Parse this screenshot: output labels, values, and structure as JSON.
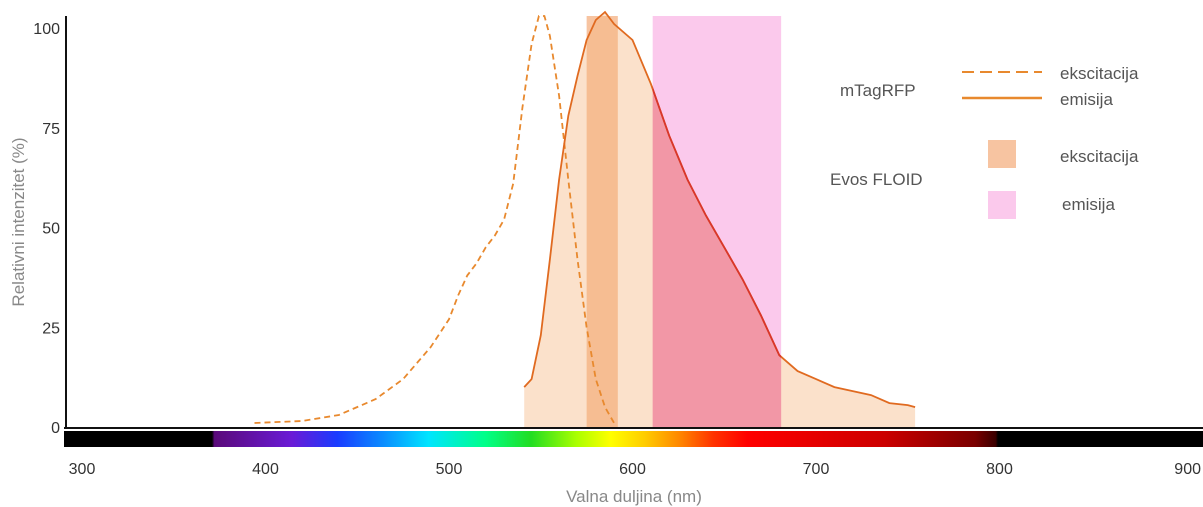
{
  "chart_data": {
    "type": "area",
    "xlabel": "Valna duljina (nm)",
    "ylabel": "Relativni intenzitet (%)",
    "xlim": [
      300,
      910
    ],
    "ylim": [
      0,
      100
    ],
    "x_ticks": [
      "300",
      "400",
      "500",
      "600",
      "700",
      "800",
      "900"
    ],
    "y_ticks": [
      "0",
      "25",
      "50",
      "75",
      "100"
    ],
    "series": [
      {
        "name": "ekscitacija",
        "group": "mTagRFP",
        "style": "dashed",
        "color": "#e8892e",
        "x": [
          394,
          394,
          420,
          440,
          460,
          475,
          490,
          500,
          505,
          510,
          515,
          520,
          525,
          530,
          535,
          540,
          545,
          549,
          552,
          555,
          560,
          565,
          570,
          575,
          580,
          585,
          590
        ],
        "y": [
          1,
          1,
          1.5,
          3,
          7,
          12,
          20,
          27,
          33,
          38,
          41,
          45,
          48,
          52,
          61,
          80,
          96,
          103,
          103,
          98,
          83,
          62,
          42,
          25,
          12,
          5,
          1
        ]
      },
      {
        "name": "emisija",
        "group": "mTagRFP",
        "style": "solid",
        "color": "#e8892e",
        "x": [
          541,
          541,
          545,
          550,
          555,
          560,
          565,
          570,
          575,
          580,
          585,
          590,
          600,
          610,
          620,
          630,
          640,
          650,
          660,
          670,
          680,
          690,
          700,
          710,
          720,
          730,
          740,
          750,
          754,
          754
        ],
        "y": [
          0,
          10,
          12,
          23,
          42,
          62,
          78,
          88,
          97,
          102,
          104,
          101,
          97,
          86,
          73,
          62,
          53,
          45,
          37,
          28,
          18,
          14,
          12,
          10,
          9,
          8,
          6,
          5.5,
          5,
          0
        ]
      }
    ],
    "bands": [
      {
        "name": "ekscitacija",
        "group": "Evos FLOID",
        "x_range": [
          575,
          592
        ],
        "color": "#f7c4a1"
      },
      {
        "name": "emisija",
        "group": "Evos FLOID",
        "x_range": [
          611,
          681
        ],
        "color": "#fbc9ec"
      }
    ],
    "spectrum_bar": {
      "x_range": [
        300,
        910
      ],
      "visible_range": [
        380,
        790
      ]
    },
    "legend": {
      "placement": "top-right",
      "groups": [
        {
          "label": "mTagRFP",
          "items": [
            "ekscitacija",
            "emisija"
          ]
        },
        {
          "label": "Evos FLOID",
          "items": [
            "ekscitacija",
            "emisija"
          ]
        }
      ]
    },
    "grid": false
  }
}
